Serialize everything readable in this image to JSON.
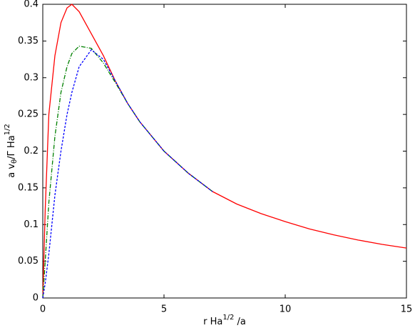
{
  "chart_data": {
    "type": "line",
    "xlabel": [
      "r Ha",
      "1/2",
      " /a"
    ],
    "ylabel": [
      "a v",
      "θ",
      "/Γ Ha",
      "1/2"
    ],
    "x": [
      0,
      0.1,
      0.25,
      0.5,
      0.75,
      1,
      1.2,
      1.5,
      2,
      2.5,
      3,
      3.5,
      4,
      5,
      6,
      7,
      8,
      9,
      10,
      11,
      12,
      13,
      14,
      15
    ],
    "series": [
      {
        "color": "#ff0000",
        "linestyle": "solid",
        "values": [
          0,
          0.12,
          0.25,
          0.33,
          0.375,
          0.395,
          0.4,
          0.39,
          0.36,
          0.33,
          0.295,
          0.265,
          0.24,
          0.2,
          0.17,
          0.145,
          0.128,
          0.115,
          0.104,
          0.094,
          0.086,
          0.079,
          0.073,
          0.068
        ]
      },
      {
        "color": "#008000",
        "linestyle": "dashdot",
        "values": [
          0,
          0.05,
          0.13,
          0.22,
          0.28,
          0.315,
          0.333,
          0.343,
          0.34,
          0.32,
          0.293,
          0.265,
          0.24,
          0.2,
          0.17,
          0.145,
          null,
          null,
          null,
          null,
          null,
          null,
          null,
          null
        ]
      },
      {
        "color": "#0000ff",
        "linestyle": "dashed",
        "values": [
          0,
          0.02,
          0.06,
          0.14,
          0.2,
          0.25,
          0.28,
          0.315,
          0.338,
          0.325,
          0.295,
          0.265,
          0.24,
          0.2,
          0.17,
          0.145,
          null,
          null,
          null,
          null,
          null,
          null,
          null,
          null
        ]
      }
    ],
    "xlim": [
      0,
      15
    ],
    "ylim": [
      0,
      0.4
    ],
    "xticks": [
      0,
      5,
      10,
      15
    ],
    "yticks": [
      0,
      0.05,
      0.1,
      0.15,
      0.2,
      0.25,
      0.3,
      0.35,
      0.4
    ],
    "grid": false
  }
}
